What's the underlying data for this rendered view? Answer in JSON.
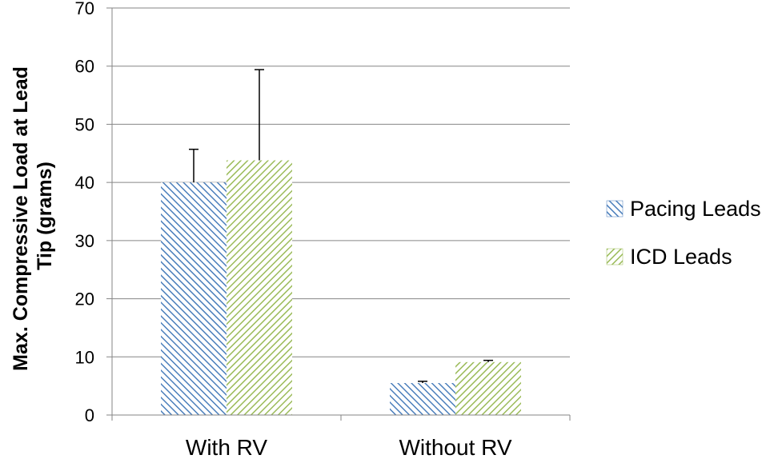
{
  "chart_data": {
    "type": "bar",
    "categories": [
      "With RV",
      "Without RV"
    ],
    "series": [
      {
        "name": "Pacing Leads",
        "values": [
          40,
          5.5
        ],
        "error": [
          5.7,
          0.3
        ],
        "color": "#4a7ebb"
      },
      {
        "name": "ICD Leads",
        "values": [
          43.8,
          9.1
        ],
        "error": [
          15.6,
          0.3
        ],
        "color": "#9bbb59"
      }
    ],
    "ylabel_lines": [
      "Max. Compressive Load at Lead",
      "Tip (grams)"
    ],
    "ylim": [
      0,
      70
    ],
    "yticks": [
      0,
      10,
      20,
      30,
      40,
      50,
      60,
      70
    ],
    "grid": true,
    "legend_position": "right",
    "bar_fill": "diagonal-hatch"
  }
}
